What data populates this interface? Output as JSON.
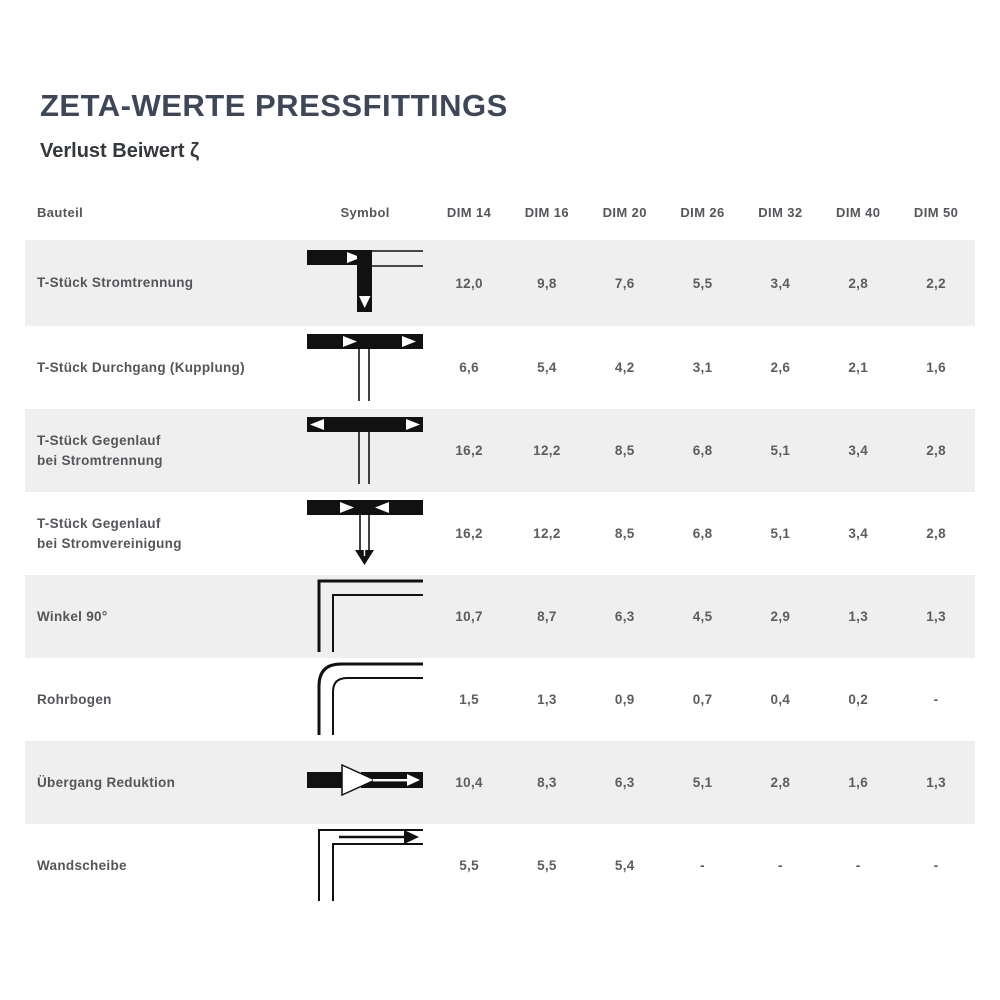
{
  "page": {
    "title": "ZETA-WERTE PRESSFITTINGS",
    "subtitle": "Verlust Beiwert ζ"
  },
  "colors": {
    "title_text": "#3e4758",
    "body_text": "#58595b",
    "row_stripe": "#efefef",
    "symbol_ink": "#111111"
  },
  "table": {
    "columns": [
      "Bauteil",
      "Symbol",
      "DIM 14",
      "DIM 16",
      "DIM 20",
      "DIM 26",
      "DIM 32",
      "DIM 40",
      "DIM 50"
    ],
    "rows": [
      {
        "bauteil": "T-Stück Stromtrennung",
        "symbol": "tee-flow-split-icon",
        "values": [
          "12,0",
          "9,8",
          "7,6",
          "5,5",
          "3,4",
          "2,8",
          "2,2"
        ]
      },
      {
        "bauteil": "T-Stück Durchgang (Kupplung)",
        "symbol": "tee-pass-through-icon",
        "values": [
          "6,6",
          "5,4",
          "4,2",
          "3,1",
          "2,6",
          "2,1",
          "1,6"
        ]
      },
      {
        "bauteil": "T-Stück Gegenlauf\nbei Stromtrennung",
        "symbol": "tee-counterflow-split-icon",
        "values": [
          "16,2",
          "12,2",
          "8,5",
          "6,8",
          "5,1",
          "3,4",
          "2,8"
        ]
      },
      {
        "bauteil": "T-Stück Gegenlauf\nbei Stromvereinigung",
        "symbol": "tee-counterflow-merge-icon",
        "values": [
          "16,2",
          "12,2",
          "8,5",
          "6,8",
          "5,1",
          "3,4",
          "2,8"
        ]
      },
      {
        "bauteil": "Winkel 90°",
        "symbol": "elbow-90-icon",
        "values": [
          "10,7",
          "8,7",
          "6,3",
          "4,5",
          "2,9",
          "1,3",
          "1,3"
        ]
      },
      {
        "bauteil": "Rohrbogen",
        "symbol": "pipe-bend-icon",
        "values": [
          "1,5",
          "1,3",
          "0,9",
          "0,7",
          "0,4",
          "0,2",
          "-"
        ]
      },
      {
        "bauteil": "Übergang Reduktion",
        "symbol": "reducer-icon",
        "values": [
          "10,4",
          "8,3",
          "6,3",
          "5,1",
          "2,8",
          "1,6",
          "1,3"
        ]
      },
      {
        "bauteil": "Wandscheibe",
        "symbol": "wall-plate-icon",
        "values": [
          "5,5",
          "5,5",
          "5,4",
          "-",
          "-",
          "-",
          "-"
        ]
      }
    ]
  }
}
